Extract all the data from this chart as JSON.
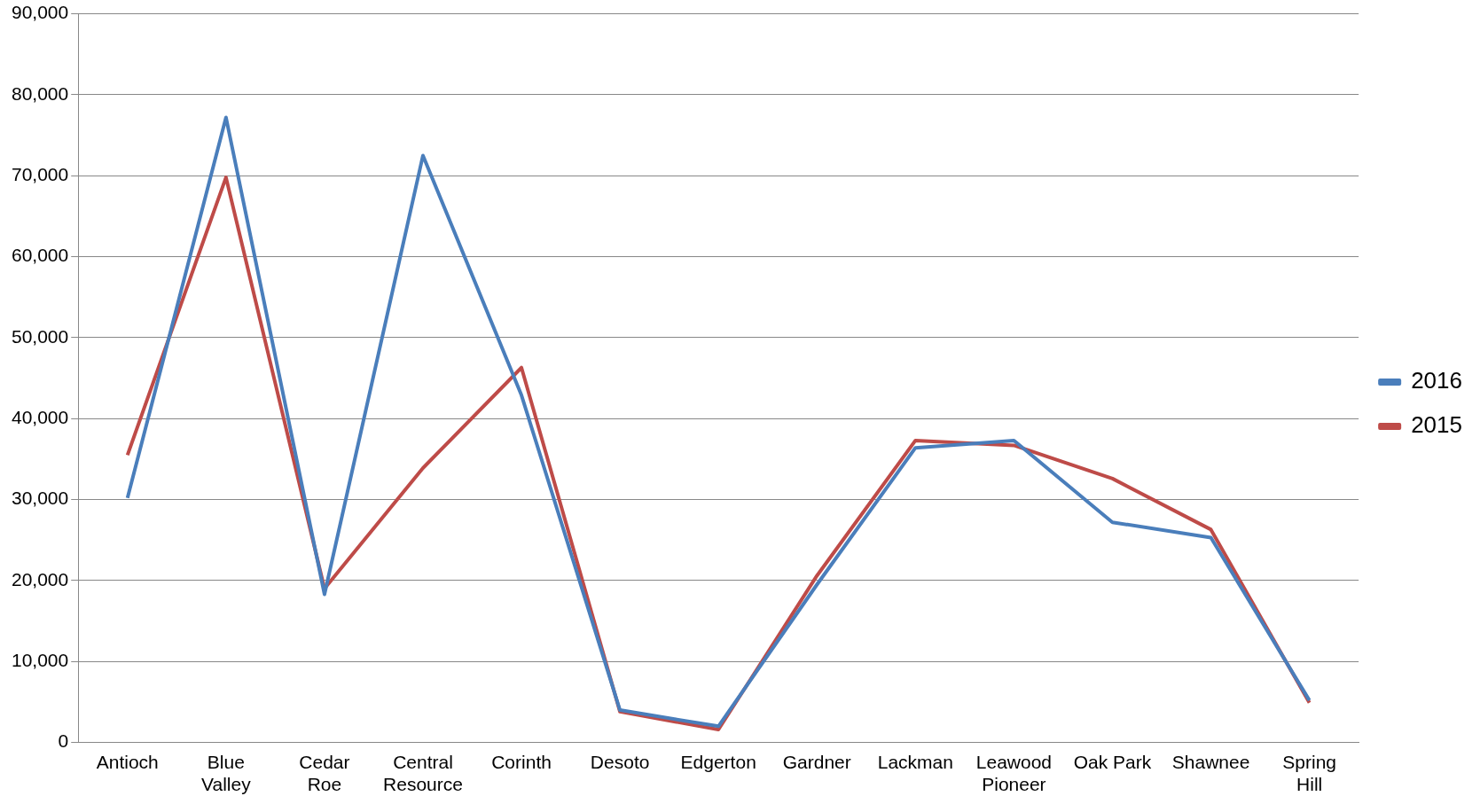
{
  "chart_data": {
    "type": "line",
    "categories": [
      "Antioch",
      "Blue Valley",
      "Cedar Roe",
      "Central Resource",
      "Corinth",
      "Desoto",
      "Edgerton",
      "Gardner",
      "Lackman",
      "Leawood Pioneer",
      "Oak Park",
      "Shawnee",
      "Spring Hill"
    ],
    "series": [
      {
        "name": "2016",
        "color": "#4a7ebb",
        "values": [
          30200,
          77200,
          18300,
          72500,
          42900,
          4000,
          2000,
          19500,
          36400,
          37300,
          27200,
          25300,
          5200
        ]
      },
      {
        "name": "2015",
        "color": "#be4b48",
        "values": [
          35500,
          69800,
          19000,
          33900,
          46300,
          3800,
          1600,
          20600,
          37300,
          36700,
          32600,
          26300,
          4900
        ]
      }
    ],
    "ylim": [
      0,
      90000
    ],
    "yticks": [
      0,
      {
        "value": 10000,
        "label": "10,000"
      },
      {
        "value": 20000,
        "label": "20,000"
      },
      {
        "value": 30000,
        "label": "30,000"
      },
      {
        "value": 40000,
        "label": "40,000"
      },
      {
        "value": 50000,
        "label": "50,000"
      },
      {
        "value": 60000,
        "label": "60,000"
      },
      {
        "value": 70000,
        "label": "70,000"
      },
      {
        "value": 80000,
        "label": "80,000"
      },
      {
        "value": 90000,
        "label": "90,000"
      }
    ],
    "grid": "y",
    "legend": "right",
    "marker": "none",
    "line_style": "solid"
  }
}
